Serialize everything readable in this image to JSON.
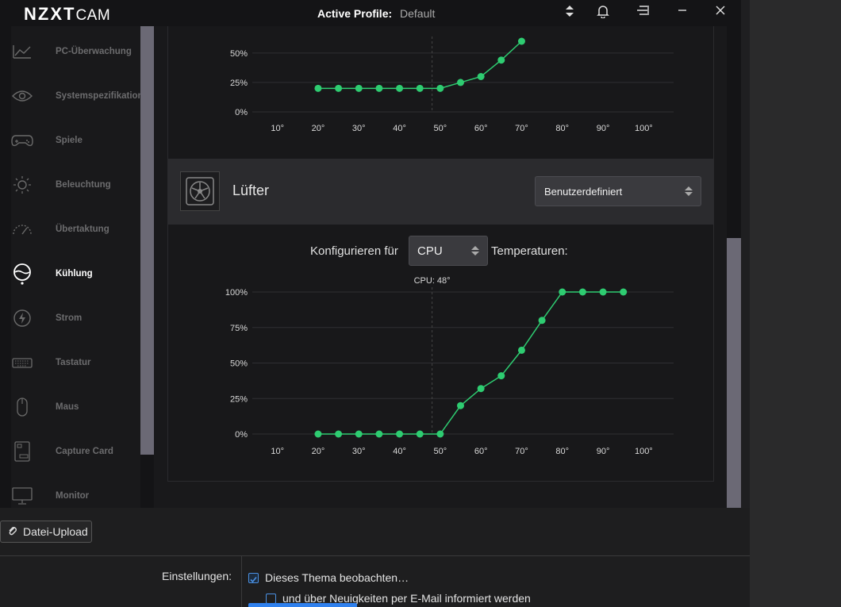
{
  "cam": {
    "logo_main": "NZXT",
    "logo_sub": "CAM",
    "profile_label": "Active Profile:",
    "profile_value": "Default"
  },
  "sidebar": {
    "items": [
      {
        "label": "PC-Überwachung",
        "icon": "chart-icon"
      },
      {
        "label": "Systemspezifikation",
        "icon": "eye-icon"
      },
      {
        "label": "Spiele",
        "icon": "gamepad-icon"
      },
      {
        "label": "Beleuchtung",
        "icon": "sun-icon"
      },
      {
        "label": "Übertaktung",
        "icon": "gauge-icon"
      },
      {
        "label": "Kühlung",
        "icon": "cooling-icon",
        "active": true
      },
      {
        "label": "Strom",
        "icon": "power-icon"
      },
      {
        "label": "Tastatur",
        "icon": "keyboard-icon"
      },
      {
        "label": "Maus",
        "icon": "mouse-icon"
      },
      {
        "label": "Capture Card",
        "icon": "capture-card-icon"
      },
      {
        "label": "Monitor",
        "icon": "monitor-icon"
      }
    ]
  },
  "fan": {
    "title": "Lüfter",
    "mode_value": "Benutzerdefiniert",
    "configure_prefix": "Konfigurieren für",
    "sensor_value": "CPU",
    "configure_suffix": "Temperaturen:",
    "cpu_marker": "CPU: 48°"
  },
  "chart_data": [
    {
      "type": "line",
      "x": [
        20,
        25,
        30,
        35,
        40,
        45,
        50,
        55,
        60,
        65,
        70
      ],
      "y": [
        20,
        20,
        20,
        20,
        20,
        20,
        20,
        25,
        30,
        44,
        60
      ],
      "xlim": [
        5,
        105
      ],
      "ylim": [
        0,
        60
      ],
      "x_ticks": [
        "10°",
        "20°",
        "30°",
        "40°",
        "50°",
        "60°",
        "70°",
        "80°",
        "90°",
        "100°"
      ],
      "y_ticks": [
        "0%",
        "25%",
        "50%"
      ],
      "marker_x": 48,
      "color": "#2ecc71"
    },
    {
      "type": "line",
      "x": [
        20,
        25,
        30,
        35,
        40,
        45,
        50,
        55,
        60,
        65,
        70,
        75,
        80,
        85,
        90,
        95
      ],
      "y": [
        0,
        0,
        0,
        0,
        0,
        0,
        0,
        20,
        32,
        41,
        59,
        80,
        100,
        100,
        100,
        100
      ],
      "xlim": [
        5,
        105
      ],
      "ylim": [
        0,
        100
      ],
      "x_ticks": [
        "10°",
        "20°",
        "30°",
        "40°",
        "50°",
        "60°",
        "70°",
        "80°",
        "90°",
        "100°"
      ],
      "y_ticks": [
        "0%",
        "25%",
        "50%",
        "75%",
        "100%"
      ],
      "marker_x": 48,
      "color": "#2ecc71"
    }
  ],
  "forum": {
    "upload_label": "Datei-Upload",
    "settings_label": "Einstellungen:",
    "watch_label": "Dieses Thema beobachten…",
    "notify_label": "und über Neuigkeiten per E-Mail informiert werden"
  }
}
